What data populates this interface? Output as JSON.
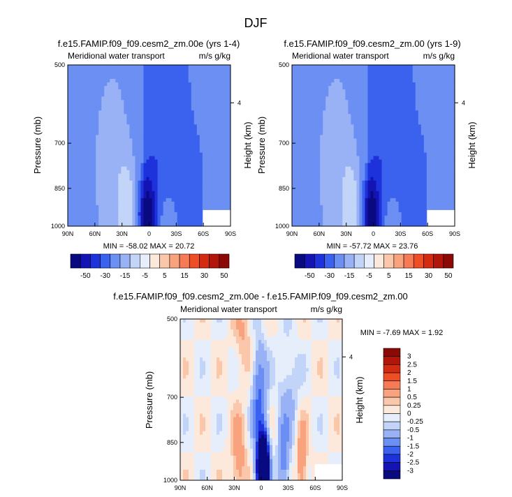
{
  "figure": {
    "title": "DJF",
    "colorbar_ticks_abs": [
      "-50",
      "-30",
      "-15",
      "-5",
      "5",
      "15",
      "30",
      "50"
    ],
    "colorbar_ticks_diff": [
      "3",
      "2.5",
      "2",
      "1.5",
      "1",
      "0.5",
      "0.25",
      "0",
      "-0.25",
      "-0.5",
      "-1",
      "-1.5",
      "-2",
      "-2.5",
      "-3"
    ],
    "colors_abs": [
      "#0a0a80",
      "#1414b4",
      "#1e32dc",
      "#3a62ee",
      "#6b8ff2",
      "#99b2f5",
      "#c2d4f8",
      "#e6eefb",
      "#fde8dc",
      "#fbc7aa",
      "#f8a27e",
      "#f57a55",
      "#ee4d26",
      "#d42a12",
      "#b2160b",
      "#8c0a06"
    ],
    "colors_diff": [
      "#0a0a80",
      "#1414b4",
      "#1e32dc",
      "#3a62ee",
      "#6b8ff2",
      "#99b2f5",
      "#c2d4f8",
      "#e6eefb",
      "#fde8dc",
      "#fbc7aa",
      "#f8a27e",
      "#f57a55",
      "#ee4d26",
      "#d42a12",
      "#b2160b",
      "#8c0a06"
    ]
  },
  "panels": [
    {
      "title": "f.e15.FAMIP.f09_f09.cesm2_zm.00e (yrs 1-4)",
      "left_label": "Meridional water transport",
      "right_label": "m/s g/kg",
      "ylabel": "Pressure (mb)",
      "ylabel_right": "Height (km)",
      "stats": "MIN = -58.02  MAX =  20.72"
    },
    {
      "title": "f.e15.FAMIP.f09_f09.cesm2_zm.00 (yrs 1-9)",
      "left_label": "Meridional water transport",
      "right_label": "m/s g/kg",
      "ylabel": "Pressure (mb)",
      "ylabel_right": "Height (km)",
      "stats": "MIN = -57.72  MAX =  23.76"
    },
    {
      "title": "f.e15.FAMIP.f09_f09.cesm2_zm.00e - f.e15.FAMIP.f09_f09.cesm2_zm.00",
      "left_label": "Meridional water transport",
      "right_label": "m/s g/kg",
      "ylabel": "Pressure (mb)",
      "ylabel_right": "Height (km)",
      "stats": "MIN =  -7.69  MAX =   1.92"
    }
  ],
  "chart_data": [
    {
      "type": "heatmap",
      "title": "f.e15.FAMIP.f09_f09.cesm2_zm.00e (yrs 1-4)",
      "xlabel": "",
      "ylabel": "Pressure (mb)",
      "x_ticks": [
        "90N",
        "60N",
        "30N",
        "0",
        "30S",
        "60S",
        "90S"
      ],
      "y_ticks": [
        "500",
        "700",
        "850",
        "1000"
      ],
      "y_right_ticks": [
        "4"
      ],
      "xlim": [
        90,
        -90
      ],
      "ylim": [
        1000,
        500
      ],
      "min": -58.02,
      "max": 20.72,
      "levels": [
        -50,
        -30,
        -15,
        -5,
        5,
        15,
        30,
        50
      ]
    },
    {
      "type": "heatmap",
      "title": "f.e15.FAMIP.f09_f09.cesm2_zm.00 (yrs 1-9)",
      "xlabel": "",
      "ylabel": "Pressure (mb)",
      "x_ticks": [
        "90N",
        "60N",
        "30N",
        "0",
        "30S",
        "60S",
        "90S"
      ],
      "y_ticks": [
        "500",
        "700",
        "850",
        "1000"
      ],
      "y_right_ticks": [
        "4"
      ],
      "xlim": [
        90,
        -90
      ],
      "ylim": [
        1000,
        500
      ],
      "min": -57.72,
      "max": 23.76,
      "levels": [
        -50,
        -30,
        -15,
        -5,
        5,
        15,
        30,
        50
      ]
    },
    {
      "type": "heatmap",
      "title": "f.e15.FAMIP.f09_f09.cesm2_zm.00e - f.e15.FAMIP.f09_f09.cesm2_zm.00",
      "xlabel": "",
      "ylabel": "Pressure (mb)",
      "x_ticks": [
        "90N",
        "60N",
        "30N",
        "0",
        "30S",
        "60S",
        "90S"
      ],
      "y_ticks": [
        "500",
        "700",
        "850",
        "1000"
      ],
      "y_right_ticks": [
        "4"
      ],
      "xlim": [
        90,
        -90
      ],
      "ylim": [
        1000,
        500
      ],
      "min": -7.69,
      "max": 1.92,
      "levels": [
        -3,
        -2.5,
        -2,
        -1.5,
        -1,
        -0.5,
        -0.25,
        0,
        0.25,
        0.5,
        1,
        1.5,
        2,
        2.5,
        3
      ]
    }
  ]
}
